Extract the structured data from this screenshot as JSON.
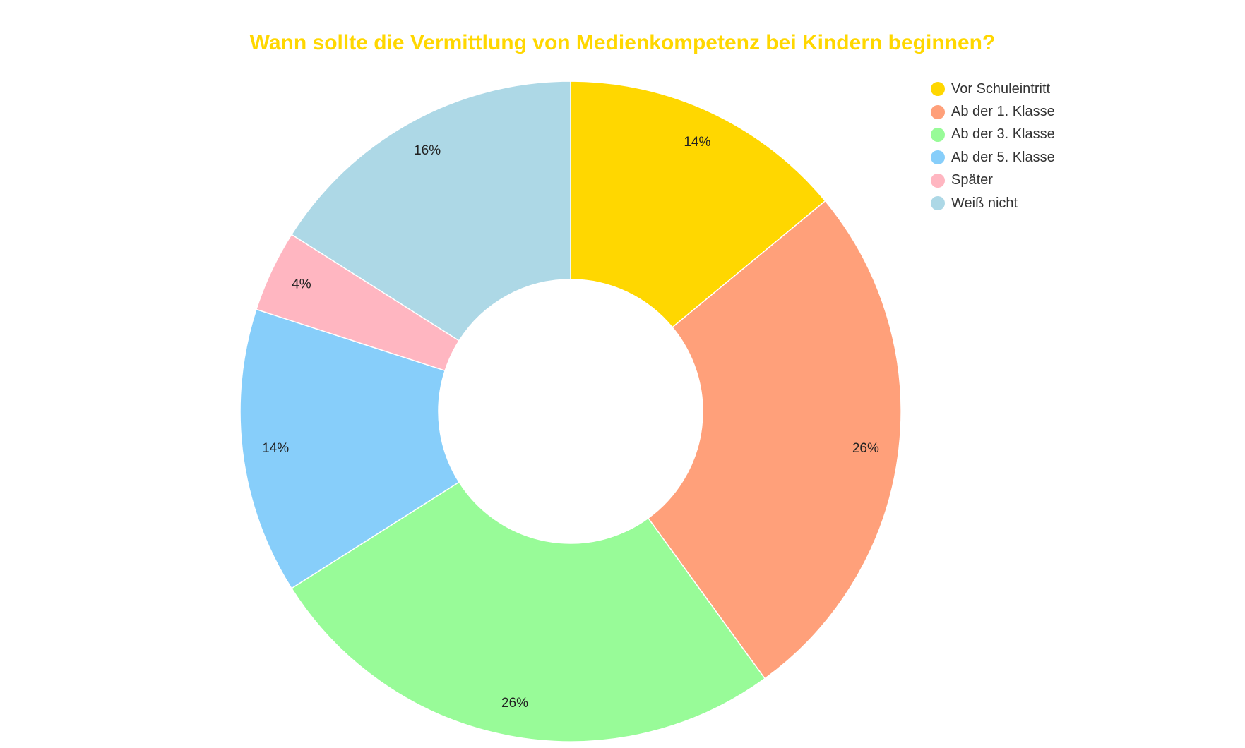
{
  "chart_data": {
    "type": "pie",
    "variant": "donut",
    "title": "Wann sollte die Vermittlung von Medienkompetenz bei Kindern beginnen?",
    "categories": [
      "Vor Schuleintritt",
      "Ab der 1. Klasse",
      "Ab der 3. Klasse",
      "Ab der 5. Klasse",
      "Später",
      "Weiß nicht"
    ],
    "values": [
      14,
      26,
      26,
      14,
      4,
      16
    ],
    "unit": "%",
    "colors": [
      "#FFD700",
      "#FFA07A",
      "#98FB98",
      "#87CEFA",
      "#FFB6C1",
      "#ADD8E6"
    ],
    "legend_position": "top-right",
    "start_angle": "12 o'clock, clockwise"
  },
  "title": "Wann sollte die Vermittlung von Medienkompetenz bei Kindern beginnen?",
  "title_color": "#FFD700",
  "legend": {
    "items": [
      {
        "label": "Vor Schuleintritt",
        "color": "#FFD700"
      },
      {
        "label": "Ab der 1. Klasse",
        "color": "#FFA07A"
      },
      {
        "label": "Ab der 3. Klasse",
        "color": "#98FB98"
      },
      {
        "label": "Ab der 5. Klasse",
        "color": "#87CEFA"
      },
      {
        "label": "Später",
        "color": "#FFB6C1"
      },
      {
        "label": "Weiß nicht",
        "color": "#ADD8E6"
      }
    ]
  }
}
